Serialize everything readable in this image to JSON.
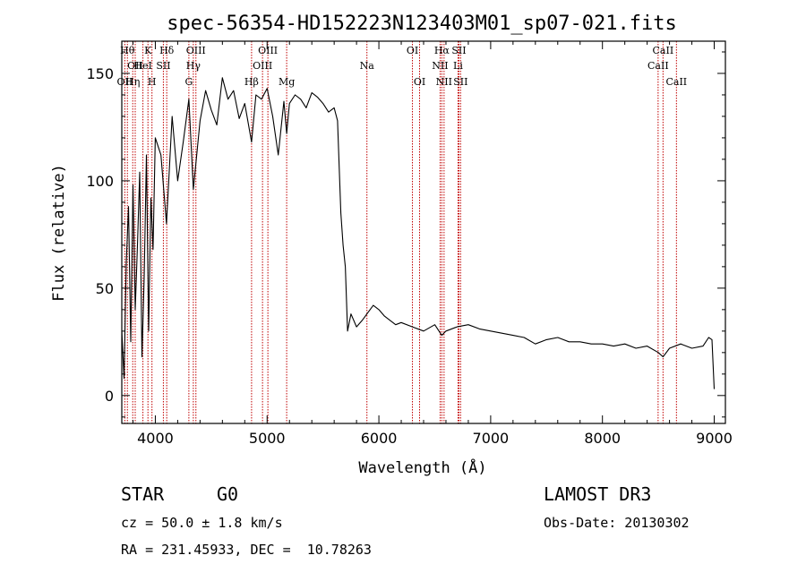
{
  "chart_data": {
    "type": "line",
    "title": "spec-56354-HD152223N123403M01_sp07-021.fits",
    "xlabel": "Wavelength (Å)",
    "ylabel": "Flux (relative)",
    "xlim": [
      3700,
      9100
    ],
    "ylim": [
      -13,
      165
    ],
    "x_ticks": [
      4000,
      5000,
      6000,
      7000,
      8000,
      9000
    ],
    "y_ticks": [
      0,
      50,
      100,
      150
    ],
    "series": [
      {
        "name": "flux",
        "x": [
          3700,
          3720,
          3740,
          3760,
          3780,
          3800,
          3820,
          3840,
          3860,
          3880,
          3900,
          3920,
          3940,
          3960,
          3980,
          4000,
          4050,
          4100,
          4150,
          4200,
          4250,
          4300,
          4340,
          4400,
          4450,
          4500,
          4550,
          4600,
          4650,
          4700,
          4750,
          4800,
          4861,
          4900,
          4950,
          5000,
          5050,
          5100,
          5150,
          5175,
          5200,
          5250,
          5300,
          5350,
          5400,
          5450,
          5500,
          5550,
          5600,
          5630,
          5660,
          5680,
          5700,
          5720,
          5750,
          5800,
          5850,
          5893,
          5950,
          6000,
          6050,
          6100,
          6150,
          6200,
          6300,
          6400,
          6500,
          6563,
          6600,
          6700,
          6800,
          6900,
          7000,
          7100,
          7200,
          7300,
          7400,
          7500,
          7600,
          7700,
          7800,
          7900,
          8000,
          8100,
          8200,
          8300,
          8400,
          8500,
          8542,
          8600,
          8700,
          8800,
          8900,
          8950,
          8980,
          9000
        ],
        "y": [
          30,
          8,
          62,
          88,
          25,
          98,
          40,
          70,
          104,
          18,
          55,
          112,
          30,
          92,
          68,
          120,
          112,
          80,
          130,
          100,
          118,
          138,
          96,
          128,
          142,
          133,
          126,
          148,
          138,
          142,
          129,
          136,
          118,
          140,
          138,
          143,
          130,
          112,
          137,
          122,
          136,
          140,
          138,
          134,
          141,
          139,
          136,
          132,
          134,
          128,
          85,
          70,
          60,
          30,
          38,
          32,
          35,
          38,
          42,
          40,
          37,
          35,
          33,
          34,
          32,
          30,
          33,
          28,
          30,
          32,
          33,
          31,
          30,
          29,
          28,
          27,
          24,
          26,
          27,
          25,
          25,
          24,
          24,
          23,
          24,
          22,
          23,
          20,
          18,
          22,
          24,
          22,
          23,
          27,
          26,
          3
        ]
      }
    ],
    "line_markers": [
      {
        "wavelength": 3727,
        "label": "OII",
        "row": 3
      },
      {
        "wavelength": 3750,
        "label": "Hθ",
        "row": 1
      },
      {
        "wavelength": 3798,
        "label": "Hη",
        "row": 3
      },
      {
        "wavelength": 3820,
        "label": "OII",
        "row": 2
      },
      {
        "wavelength": 3889,
        "label": "HeI",
        "row": 2
      },
      {
        "wavelength": 3934,
        "label": "K",
        "row": 1
      },
      {
        "wavelength": 3970,
        "label": "H",
        "row": 3
      },
      {
        "wavelength": 4072,
        "label": "SII",
        "row": 2
      },
      {
        "wavelength": 4102,
        "label": "Hδ",
        "row": 1
      },
      {
        "wavelength": 4300,
        "label": "G",
        "row": 3
      },
      {
        "wavelength": 4340,
        "label": "Hγ",
        "row": 2
      },
      {
        "wavelength": 4363,
        "label": "OIII",
        "row": 1
      },
      {
        "wavelength": 4861,
        "label": "Hβ",
        "row": 3
      },
      {
        "wavelength": 4959,
        "label": "OIII",
        "row": 2
      },
      {
        "wavelength": 5007,
        "label": "OIII",
        "row": 1
      },
      {
        "wavelength": 5175,
        "label": "Mg",
        "row": 3
      },
      {
        "wavelength": 5893,
        "label": "Na",
        "row": 2
      },
      {
        "wavelength": 6300,
        "label": "OI",
        "row": 1
      },
      {
        "wavelength": 6364,
        "label": "OI",
        "row": 3
      },
      {
        "wavelength": 6548,
        "label": "NII",
        "row": 2
      },
      {
        "wavelength": 6563,
        "label": "Hα",
        "row": 1
      },
      {
        "wavelength": 6583,
        "label": "NII",
        "row": 3
      },
      {
        "wavelength": 6708,
        "label": "Li",
        "row": 2
      },
      {
        "wavelength": 6716,
        "label": "SII",
        "row": 1
      },
      {
        "wavelength": 6731,
        "label": "SII",
        "row": 3
      },
      {
        "wavelength": 8498,
        "label": "CaII",
        "row": 2
      },
      {
        "wavelength": 8542,
        "label": "CaII",
        "row": 1
      },
      {
        "wavelength": 8662,
        "label": "CaII",
        "row": 3
      }
    ],
    "marker_color": "#c00000"
  },
  "info": {
    "object_class": "STAR",
    "subclass": "G0",
    "survey": "LAMOST DR3",
    "redshift": "cz = 50.0 ± 1.8 km/s",
    "obs_date": "Obs-Date: 20130302",
    "coords": "RA = 231.45933, DEC =  10.78263"
  }
}
